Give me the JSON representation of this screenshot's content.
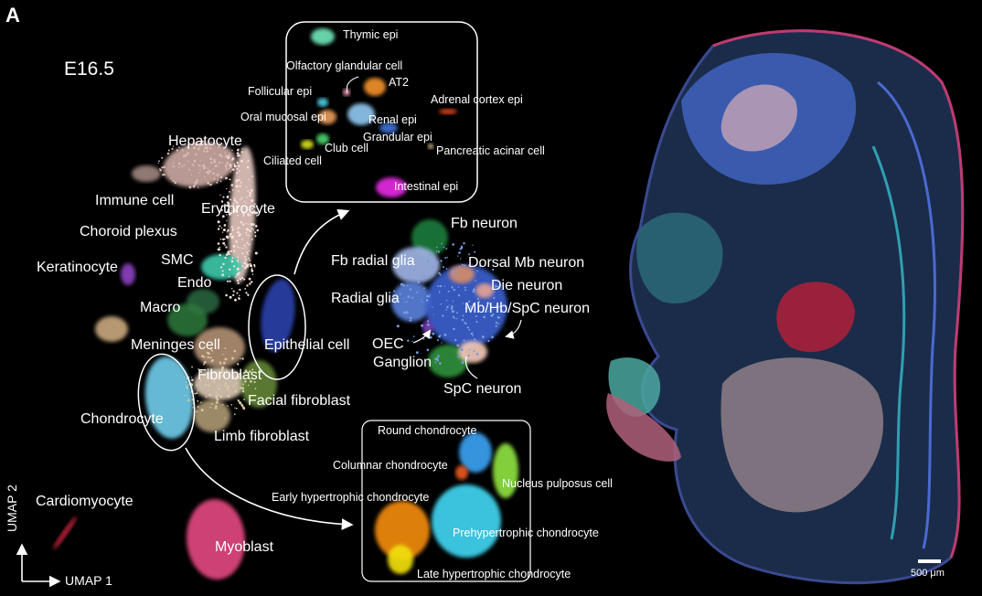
{
  "panel_label": "A",
  "stage_label": "E16.5",
  "main_clusters": [
    {
      "name": "Hepatocyte",
      "color": "#c9a7a0"
    },
    {
      "name": "Immune cell",
      "color": "#b49690"
    },
    {
      "name": "Erythrocyte",
      "color": "#f2d4cc"
    },
    {
      "name": "Choroid plexus",
      "color": "#d6b486"
    },
    {
      "name": "SMC",
      "color": "#3cc6a8"
    },
    {
      "name": "Keratinocyte",
      "color": "#8a3fbf"
    },
    {
      "name": "Endo",
      "color": "#2f6f45"
    },
    {
      "name": "Macro",
      "color": "#2f7a3e"
    },
    {
      "name": "Epithelial cell",
      "color": "#2b3fa6"
    },
    {
      "name": "Meninges cell",
      "color": "#c8a383"
    },
    {
      "name": "Fibroblast",
      "color": "#e9d6c0"
    },
    {
      "name": "Facial fibroblast",
      "color": "#6b8e3b"
    },
    {
      "name": "Chondrocyte",
      "color": "#6ec9e8"
    },
    {
      "name": "Limb fibroblast",
      "color": "#b8a27a"
    },
    {
      "name": "Cardiomyocyte",
      "color": "#c2203a"
    },
    {
      "name": "Myoblast",
      "color": "#e0467e"
    },
    {
      "name": "Fb neuron",
      "color": "#1f7a3b"
    },
    {
      "name": "Fb radial glia",
      "color": "#9fb4e4"
    },
    {
      "name": "Dorsal Mb neuron",
      "color": "#d38a6a"
    },
    {
      "name": "Die neuron",
      "color": "#e6a090"
    },
    {
      "name": "Radial glia",
      "color": "#5a7fd8"
    },
    {
      "name": "Mb/Hb/SpC neuron",
      "color": "#3a5fcb"
    },
    {
      "name": "OEC",
      "color": "#7a3fb8"
    },
    {
      "name": "Ganglion",
      "color": "#2f8f3a"
    },
    {
      "name": "SpC neuron",
      "color": "#f3c8b8"
    }
  ],
  "epithelial_inset": {
    "labels": [
      "Thymic epi",
      "Olfactory glandular cell",
      "AT2",
      "Follicular epi",
      "Adrenal cortex epi",
      "Oral mucosal epi",
      "Renal epi",
      "Grandular epi",
      "Club cell",
      "Pancreatic acinar cell",
      "Ciliated cell",
      "Intestinal epi"
    ],
    "colors": {
      "Thymic epi": "#6fe3b8",
      "AT2": "#f0902a",
      "Adrenal cortex epi": "#e8461e",
      "Renal epi": "#8ec6ef",
      "Intestinal epi": "#e42be0",
      "Ciliated cell": "#d8e21e",
      "Follicular epi": "#4bd0e8",
      "Oral mucosal epi": "#e79a5a",
      "Club cell": "#48d36a",
      "Olfactory glandular cell": "#f4a2b6",
      "Pancreatic acinar cell": "#f2d1a0",
      "Grandular epi": "#3f6fcf"
    }
  },
  "chondrocyte_inset": {
    "labels": [
      "Round chondrocyte",
      "Columnar chondrocyte",
      "Nucleus pulposus cell",
      "Early hypertrophic chondrocyte",
      "Prehypertrophic chondrocyte",
      "Late hypertrophic chondrocyte"
    ],
    "colors": {
      "Round chondrocyte": "#3aa0f0",
      "Columnar chondrocyte": "#e85a20",
      "Nucleus pulposus cell": "#8ee040",
      "Early hypertrophic chondrocyte": "#f08a10",
      "Prehypertrophic chondrocyte": "#3fd4f0",
      "Late hypertrophic chondrocyte": "#f0e010"
    }
  },
  "axes": {
    "x_label": "UMAP 1",
    "y_label": "UMAP 2"
  },
  "scale_bar": {
    "label": "500 μm"
  }
}
